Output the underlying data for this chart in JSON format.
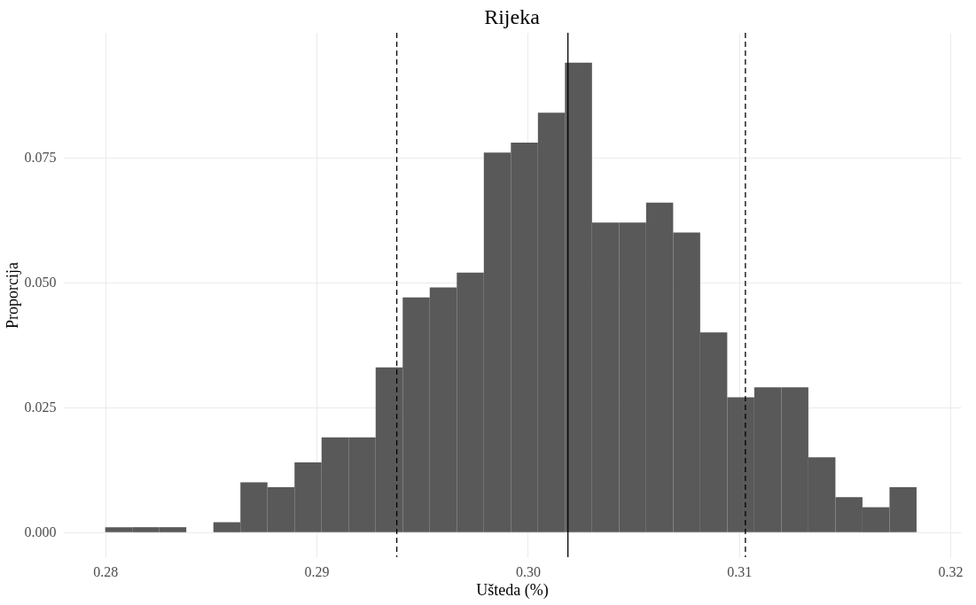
{
  "chart_data": {
    "type": "histogram",
    "title": "Rijeka",
    "xlabel": "Ušteda (%)",
    "ylabel": "Proporcija",
    "bins": [
      0.28,
      0.28128,
      0.28256,
      0.28384,
      0.28512,
      0.2864,
      0.28768,
      0.28896,
      0.29024,
      0.29152,
      0.2928,
      0.29408,
      0.29536,
      0.29664,
      0.29792,
      0.2992,
      0.30048,
      0.30176,
      0.30304,
      0.30432,
      0.3056,
      0.30688,
      0.30816,
      0.30944,
      0.31072,
      0.312,
      0.31328,
      0.31456,
      0.31584,
      0.31712,
      0.3184
    ],
    "values": [
      0.001,
      0.001,
      0.001,
      0,
      0.002,
      0.01,
      0.009,
      0.014,
      0.019,
      0.019,
      0.033,
      0.047,
      0.049,
      0.052,
      0.076,
      0.078,
      0.084,
      0.094,
      0.062,
      0.062,
      0.066,
      0.06,
      0.04,
      0.027,
      0.029,
      0.029,
      0.015,
      0.007,
      0.005,
      0.009
    ],
    "color": "#595959",
    "xlim": [
      0.278,
      0.3205
    ],
    "xticks": [
      0.28,
      0.29,
      {
        "value": 0.3,
        "label": "0.30"
      },
      0.31,
      0.32
    ],
    "ylim": [
      -0.005,
      0.1
    ],
    "yticks": [
      {
        "value": 0,
        "label": "0.000"
      },
      0.025,
      {
        "value": 0.05,
        "label": "0.050"
      },
      0.075
    ],
    "grid": true,
    "ref_lines": [
      {
        "axis": "x",
        "value": 0.2938,
        "label": null,
        "line_style": "dashed",
        "color": "#000000"
      },
      {
        "axis": "x",
        "value": 0.3019,
        "label": null,
        "line_style": "solid",
        "color": "#000000"
      },
      {
        "axis": "x",
        "value": 0.3103,
        "label": null,
        "line_style": "dashed",
        "color": "#000000"
      }
    ]
  }
}
